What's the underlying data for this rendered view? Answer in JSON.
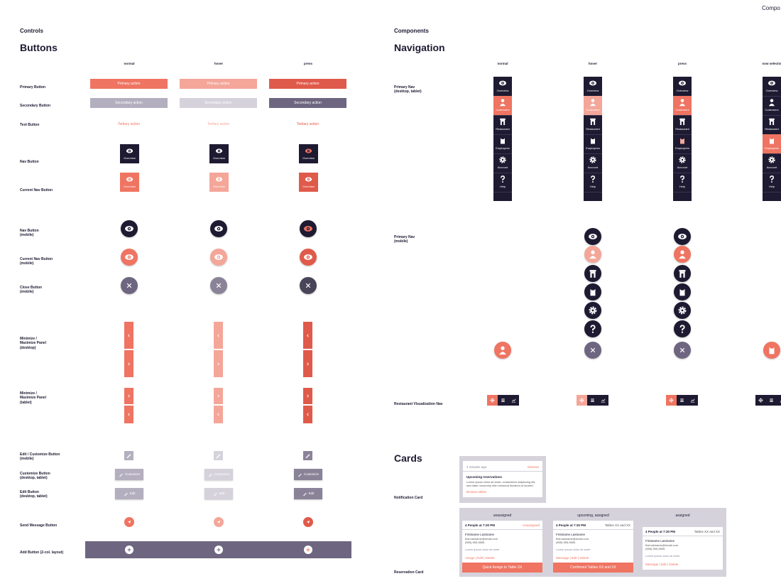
{
  "corner": "Compo",
  "controls": {
    "eyebrow": "Controls",
    "title": "Buttons",
    "states": [
      "normal",
      "hover",
      "press"
    ],
    "rows": [
      "Primary Button",
      "Secondary Button",
      "Text Button",
      "Nav Button",
      "Current Nav Button",
      "Nav Button\n(mobile)",
      "Current Nav Button\n(mobile)",
      "Close Button\n(mobile)",
      "Minimize /\nMaximize Panel\n(desktop)",
      "Minimize /\nMaximize Panel\n(tablet)",
      "Edit / Customize Button\n(mobile)",
      "Customize Button\n(desktop, tablet)",
      "Edit Button\n(desktop, tablet)",
      "Send Message Button",
      "Add Button (2-col. layout)"
    ],
    "labels": {
      "primary": "Primary action",
      "secondary": "Secondary action",
      "tertiary": "Tertiary action",
      "overview": "Overview",
      "customize": "Customize",
      "edit": "Edit"
    }
  },
  "components": {
    "eyebrow": "Components",
    "title": "Navigation",
    "states": [
      "normal",
      "hover",
      "press",
      "now selectio"
    ],
    "rows": [
      "Primary Nav\n(desktop, tablet)",
      "Primary Nav\n(mobile)",
      "Restaurant Visualization Nav"
    ],
    "nav_items": [
      "Overview",
      "Customers",
      "Restaurant",
      "Employees",
      "Account",
      "Help"
    ],
    "cards": {
      "title": "Cards",
      "notification": {
        "label": "Notification Card",
        "time": "2 minutes ago",
        "dismiss": "Dismiss",
        "heading": "Upcoming reservations",
        "body": "Lorem ipsum dolor sit amet, consectetur adipiscing elit, sed diam nonummy nibh euismod tincidunt ut laoreet.",
        "link": "Browse tables"
      },
      "reservation": {
        "label": "Reservation Card",
        "columns": [
          {
            "state": "unassigned",
            "party": "4 People at 7:30 PM",
            "status": "Unassigned",
            "name": "Firstname Lastname",
            "email": "first.lastname@email.com",
            "phone": "(555) 555-5555",
            "note": "Lorem ipsum dolor sit amet",
            "actions": "Assign | Edit | Delete",
            "button": "Quick Assign to Table XX"
          },
          {
            "state": "upcoming, assigned",
            "party": "4 People at 7:30 PM",
            "status": "Tables XX and XX",
            "name": "Firstname Lastname",
            "email": "first.lastname@email.com",
            "phone": "(555) 555-5555",
            "note": "Lorem ipsum dolor sit amet",
            "actions": "Message | Edit | Delete",
            "button": "Confirmed Tables XX and XX"
          },
          {
            "state": "assigned",
            "party": "4 People at 7:30 PM",
            "status": "Tables XX and XX",
            "name": "Firstname Lastname",
            "email": "first.lastname@email.com",
            "phone": "(555) 555-5555",
            "note": "Lorem ipsum dolor sit amet",
            "actions": "Message | Edit | Delete"
          }
        ]
      }
    }
  }
}
